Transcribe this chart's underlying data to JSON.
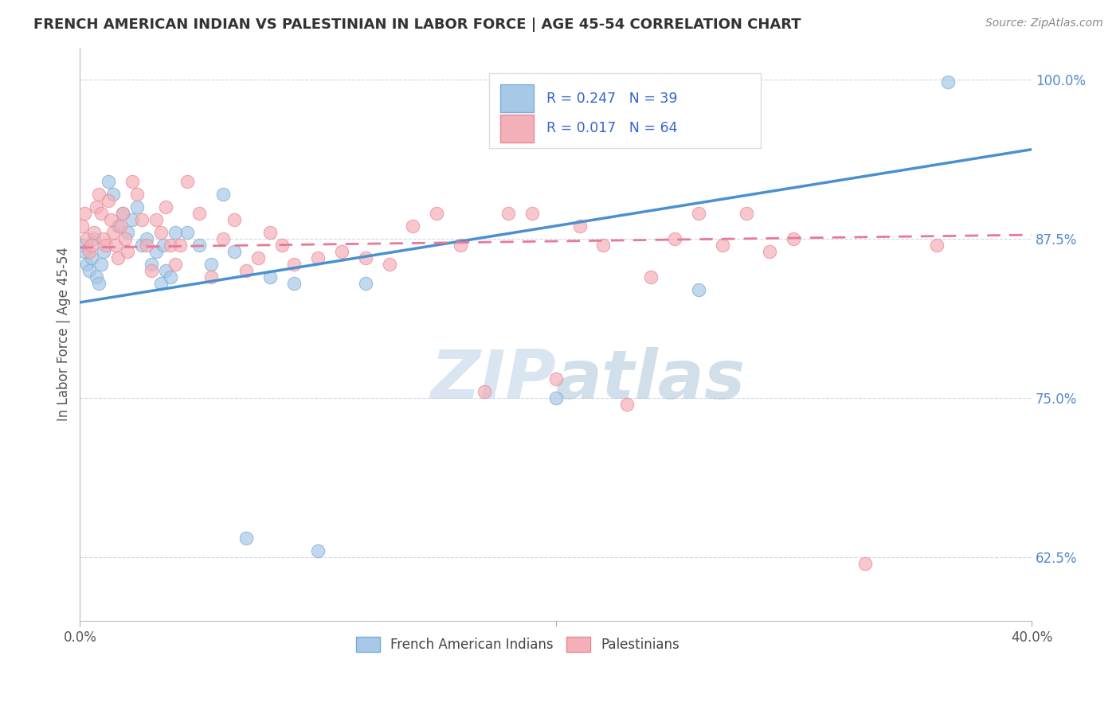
{
  "title": "FRENCH AMERICAN INDIAN VS PALESTINIAN IN LABOR FORCE | AGE 45-54 CORRELATION CHART",
  "source": "Source: ZipAtlas.com",
  "ylabel": "In Labor Force | Age 45-54",
  "xlim": [
    0.0,
    0.4
  ],
  "ylim": [
    0.575,
    1.025
  ],
  "yticks": [
    0.625,
    0.75,
    0.875,
    1.0
  ],
  "ytick_labels": [
    "62.5%",
    "75.0%",
    "87.5%",
    "100.0%"
  ],
  "xticks": [
    0.0,
    0.2,
    0.4
  ],
  "xtick_labels": [
    "0.0%",
    "",
    "40.0%"
  ],
  "blue_R": 0.247,
  "blue_N": 39,
  "pink_R": 0.017,
  "pink_N": 64,
  "blue_scatter_color": "#a8c8e8",
  "blue_edge_color": "#7aabcf",
  "pink_scatter_color": "#f4b0b8",
  "pink_edge_color": "#e88898",
  "blue_line_color": "#4a90d0",
  "pink_line_color": "#e87898",
  "title_color": "#333333",
  "source_color": "#888888",
  "ylabel_color": "#555555",
  "tick_color_y": "#5588cc",
  "tick_color_x": "#555555",
  "watermark_color": "#c8ddf0",
  "legend_box_color": "#f8f8f8",
  "legend_border_color": "#dddddd",
  "legend_text_color": "#3366cc",
  "grid_color": "#d0d8e8",
  "blue_line_y0": 0.825,
  "blue_line_y1": 0.945,
  "pink_line_y0": 0.868,
  "pink_line_y1": 0.878,
  "blue_points_x": [
    0.001,
    0.002,
    0.003,
    0.004,
    0.005,
    0.006,
    0.007,
    0.008,
    0.009,
    0.01,
    0.012,
    0.014,
    0.016,
    0.018,
    0.02,
    0.022,
    0.024,
    0.026,
    0.028,
    0.03,
    0.032,
    0.034,
    0.036,
    0.038,
    0.04,
    0.045,
    0.05,
    0.055,
    0.06,
    0.065,
    0.07,
    0.08,
    0.09,
    0.1,
    0.12,
    0.2,
    0.26,
    0.365,
    0.035
  ],
  "blue_points_y": [
    0.87,
    0.865,
    0.855,
    0.85,
    0.86,
    0.875,
    0.845,
    0.84,
    0.855,
    0.865,
    0.92,
    0.91,
    0.885,
    0.895,
    0.88,
    0.89,
    0.9,
    0.87,
    0.875,
    0.855,
    0.865,
    0.84,
    0.85,
    0.845,
    0.88,
    0.88,
    0.87,
    0.855,
    0.91,
    0.865,
    0.64,
    0.845,
    0.84,
    0.63,
    0.84,
    0.75,
    0.835,
    0.998,
    0.87
  ],
  "pink_points_x": [
    0.001,
    0.002,
    0.003,
    0.004,
    0.005,
    0.006,
    0.007,
    0.008,
    0.009,
    0.01,
    0.011,
    0.012,
    0.013,
    0.014,
    0.015,
    0.016,
    0.017,
    0.018,
    0.019,
    0.02,
    0.022,
    0.024,
    0.026,
    0.028,
    0.03,
    0.032,
    0.034,
    0.036,
    0.038,
    0.04,
    0.042,
    0.045,
    0.05,
    0.055,
    0.06,
    0.065,
    0.07,
    0.075,
    0.08,
    0.085,
    0.09,
    0.1,
    0.11,
    0.12,
    0.13,
    0.14,
    0.15,
    0.16,
    0.17,
    0.18,
    0.19,
    0.2,
    0.21,
    0.22,
    0.23,
    0.24,
    0.25,
    0.26,
    0.27,
    0.28,
    0.29,
    0.3,
    0.33,
    0.36
  ],
  "pink_points_y": [
    0.885,
    0.895,
    0.875,
    0.865,
    0.87,
    0.88,
    0.9,
    0.91,
    0.895,
    0.875,
    0.87,
    0.905,
    0.89,
    0.88,
    0.87,
    0.86,
    0.885,
    0.895,
    0.875,
    0.865,
    0.92,
    0.91,
    0.89,
    0.87,
    0.85,
    0.89,
    0.88,
    0.9,
    0.87,
    0.855,
    0.87,
    0.92,
    0.895,
    0.845,
    0.875,
    0.89,
    0.85,
    0.86,
    0.88,
    0.87,
    0.855,
    0.86,
    0.865,
    0.86,
    0.855,
    0.885,
    0.895,
    0.87,
    0.755,
    0.895,
    0.895,
    0.765,
    0.885,
    0.87,
    0.745,
    0.845,
    0.875,
    0.895,
    0.87,
    0.895,
    0.865,
    0.875,
    0.62,
    0.87
  ]
}
